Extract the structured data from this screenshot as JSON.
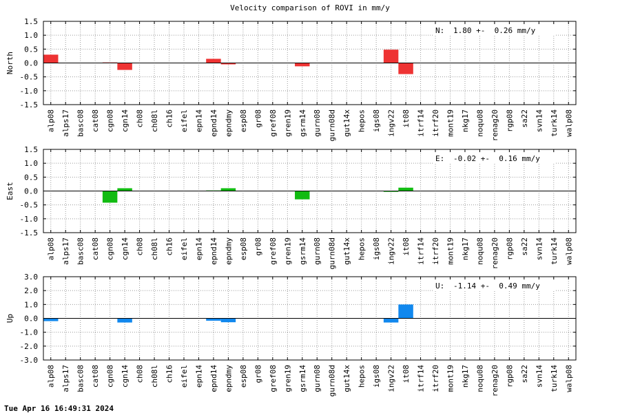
{
  "title": "Velocity comparison of ROVI in mm/y",
  "timestamp": "Tue Apr 16 16:49:31 2024",
  "colors": {
    "north": "#ee3333",
    "east": "#11bb11",
    "up": "#1188ee"
  },
  "chart_data": [
    {
      "type": "bar",
      "ylabel": "North",
      "ylim": [
        -1.5,
        1.5
      ],
      "yticks": [
        "1.5",
        "1.0",
        "0.5",
        "0.0",
        "-0.5",
        "-1.0",
        "-1.5"
      ],
      "grid": true,
      "stat_label": "N:",
      "stat_text": "1.80 +-  0.26 mm/y",
      "categories": [
        "alp08",
        "alps17",
        "basc08",
        "cat08",
        "cgn08",
        "cgn14",
        "ch08",
        "ch08l",
        "ch16",
        "eifel",
        "epn14",
        "epnd14",
        "epndmy",
        "esp08",
        "gr08",
        "gref08",
        "gren19",
        "gsrm14",
        "gurn08",
        "gurn08d",
        "gut14x",
        "hepos",
        "igs08",
        "ingv22",
        "it08",
        "itrf14",
        "itrf20",
        "mont19",
        "nkg17",
        "noqu08",
        "renag20",
        "rgp08",
        "sa22",
        "svn14",
        "turk14",
        "walp08"
      ],
      "values": [
        0.3,
        0,
        0,
        0,
        0.02,
        -0.25,
        0,
        0,
        0,
        0,
        0,
        0.15,
        -0.05,
        0,
        0,
        0,
        0,
        -0.12,
        0,
        0,
        0,
        0,
        0,
        0.48,
        -0.4,
        0,
        0,
        0,
        0,
        0,
        0,
        0,
        0,
        0,
        0,
        0
      ]
    },
    {
      "type": "bar",
      "ylabel": "East",
      "ylim": [
        -1.5,
        1.5
      ],
      "yticks": [
        "1.5",
        "1.0",
        "0.5",
        "0.0",
        "-0.5",
        "-1.0",
        "-1.5"
      ],
      "grid": true,
      "stat_label": "E:",
      "stat_text": "-0.02 +-  0.16 mm/y",
      "categories": [
        "alp08",
        "alps17",
        "basc08",
        "cat08",
        "cgn08",
        "cgn14",
        "ch08",
        "ch08l",
        "ch16",
        "eifel",
        "epn14",
        "epnd14",
        "epndmy",
        "esp08",
        "gr08",
        "gref08",
        "gren19",
        "gsrm14",
        "gurn08",
        "gurn08d",
        "gut14x",
        "hepos",
        "igs08",
        "ingv22",
        "it08",
        "itrf14",
        "itrf20",
        "mont19",
        "nkg17",
        "noqu08",
        "renag20",
        "rgp08",
        "sa22",
        "svn14",
        "turk14",
        "walp08"
      ],
      "values": [
        0,
        0,
        0,
        0,
        -0.42,
        0.1,
        0,
        0,
        0,
        0,
        0,
        0.02,
        0.1,
        0,
        0,
        0,
        0,
        -0.3,
        0,
        0,
        0,
        0,
        0,
        -0.03,
        0.12,
        0,
        0,
        0,
        0,
        0,
        0,
        0,
        0,
        0,
        0,
        0
      ]
    },
    {
      "type": "bar",
      "ylabel": "Up",
      "ylim": [
        -3.0,
        3.0
      ],
      "yticks": [
        "3.0",
        "2.0",
        "1.0",
        "0.0",
        "-1.0",
        "-2.0",
        "-3.0"
      ],
      "grid": true,
      "stat_label": "U:",
      "stat_text": "-1.14 +-  0.49 mm/y",
      "categories": [
        "alp08",
        "alps17",
        "basc08",
        "cat08",
        "cgn08",
        "cgn14",
        "ch08",
        "ch08l",
        "ch16",
        "eifel",
        "epn14",
        "epnd14",
        "epndmy",
        "esp08",
        "gr08",
        "gref08",
        "gren19",
        "gsrm14",
        "gurn08",
        "gurn08d",
        "gut14x",
        "hepos",
        "igs08",
        "ingv22",
        "it08",
        "itrf14",
        "itrf20",
        "mont19",
        "nkg17",
        "noqu08",
        "renag20",
        "rgp08",
        "sa22",
        "svn14",
        "turk14",
        "walp08"
      ],
      "values": [
        -0.2,
        0,
        0,
        0,
        0,
        -0.3,
        0,
        0,
        0,
        0,
        0,
        -0.17,
        -0.28,
        0,
        0,
        0,
        0,
        0,
        0,
        0,
        0,
        0,
        0,
        -0.3,
        1.0,
        0,
        0,
        0,
        0,
        0,
        0,
        0,
        0,
        0,
        0,
        0
      ]
    }
  ]
}
